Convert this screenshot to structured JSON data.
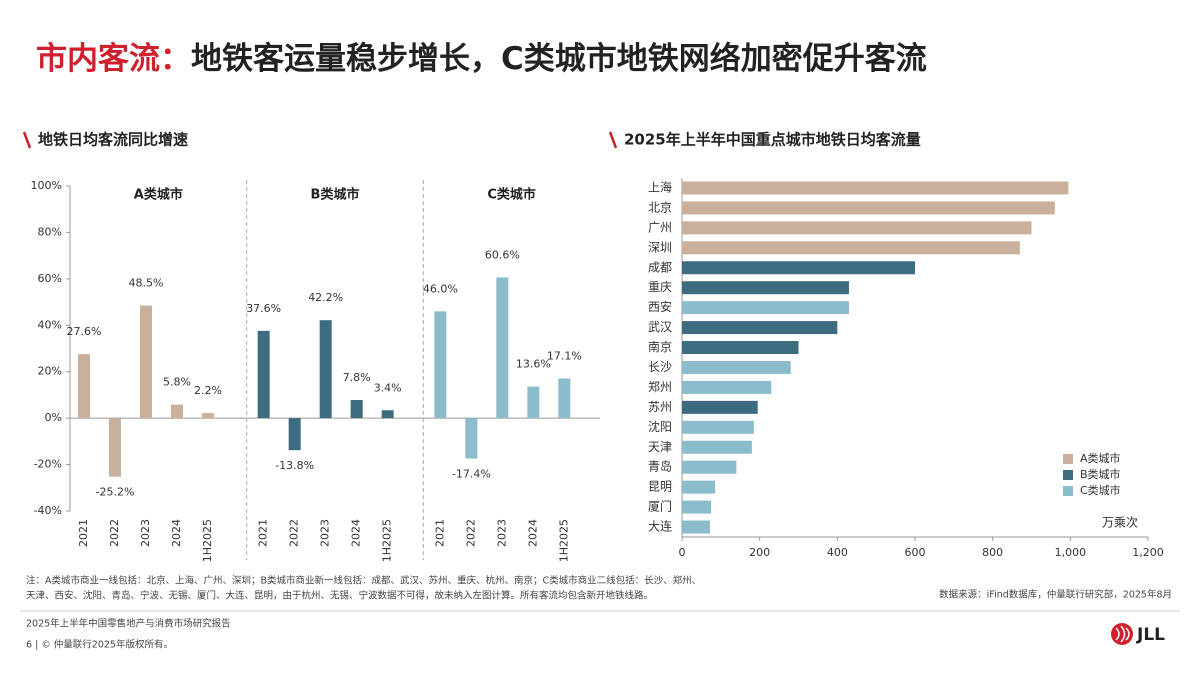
{
  "headline": {
    "lead": "市内客流：",
    "rest": "地铁客运量稳步增长，C类城市地铁网络加密促升客流"
  },
  "chart_data": [
    {
      "type": "panel-bar",
      "title": "地铁日均客流同比增速",
      "categories": [
        "2021",
        "2022",
        "2023",
        "2024",
        "1H2025"
      ],
      "series": [
        {
          "name": "A类城市",
          "color": "#c8b09c",
          "values": [
            27.6,
            -25.2,
            48.5,
            5.8,
            2.2
          ],
          "value_labels": [
            "27.6%",
            "-25.2%",
            "48.5%",
            "5.8%",
            "2.2%"
          ]
        },
        {
          "name": "B类城市",
          "color": "#3d6b80",
          "values": [
            37.6,
            -13.8,
            42.2,
            7.8,
            3.4
          ],
          "value_labels": [
            "37.6%",
            "-13.8%",
            "42.2%",
            "7.8%",
            "3.4%"
          ]
        },
        {
          "name": "C类城市",
          "color": "#8bbccc",
          "values": [
            46.0,
            -17.4,
            60.6,
            13.6,
            17.1
          ],
          "value_labels": [
            "46.0%",
            "-17.4%",
            "60.6%",
            "13.6%",
            "17.1%"
          ]
        }
      ],
      "ylim": [
        -40,
        100
      ],
      "yticks": [
        {
          "value": -40,
          "label": "-40%"
        },
        {
          "value": -20,
          "label": "-20%"
        },
        {
          "value": 0,
          "label": "0%"
        },
        {
          "value": 20,
          "label": "20%"
        },
        {
          "value": 40,
          "label": "40%"
        },
        {
          "value": 60,
          "label": "60%"
        },
        {
          "value": 80,
          "label": "80%"
        },
        {
          "value": 100,
          "label": "100%"
        }
      ]
    },
    {
      "type": "hbar",
      "title": "2025年上半年中国重点城市地铁日均客流量",
      "unit": "万乘次",
      "categories": [
        "上海",
        "北京",
        "广州",
        "深圳",
        "成都",
        "重庆",
        "西安",
        "武汉",
        "南京",
        "长沙",
        "郑州",
        "苏州",
        "沈阳",
        "天津",
        "青岛",
        "昆明",
        "厦门",
        "大连"
      ],
      "values": [
        995,
        960,
        900,
        870,
        600,
        430,
        430,
        400,
        300,
        280,
        230,
        195,
        185,
        180,
        140,
        85,
        75,
        72
      ],
      "colors": [
        "#c8b09c",
        "#c8b09c",
        "#c8b09c",
        "#c8b09c",
        "#3d6b80",
        "#3d6b80",
        "#8bbccc",
        "#3d6b80",
        "#3d6b80",
        "#8bbccc",
        "#8bbccc",
        "#3d6b80",
        "#8bbccc",
        "#8bbccc",
        "#8bbccc",
        "#8bbccc",
        "#8bbccc",
        "#8bbccc"
      ],
      "legend": [
        {
          "name": "A类城市",
          "color": "#c8b09c"
        },
        {
          "name": "B类城市",
          "color": "#3d6b80"
        },
        {
          "name": "C类城市",
          "color": "#8bbccc"
        }
      ],
      "xlim": [
        0,
        1200
      ],
      "xticks": [
        0,
        200,
        400,
        600,
        800,
        {
          "value": 1000,
          "label": "1,000"
        },
        {
          "value": 1200,
          "label": "1,200"
        }
      ]
    }
  ],
  "notes": [
    "注：A类城市商业一线包括：北京、上海、广州、深圳；B类城市商业新一线包括：成都、武汉、苏州、重庆、杭州、南京；C类城市商业二线包括：长沙、郑州、",
    "天津、西安、沈阳、青岛、宁波、无锡、厦门、大连、昆明，由于杭州、无锡、宁波数据不可得，故未纳入左图计算。所有客流均包含新开地铁线路。"
  ],
  "source": "数据来源：iFind数据库，仲量联行研究部，2025年8月",
  "footer": {
    "report": "2025年上半年中国零售地产与消费市场研究报告",
    "copyright": "6 | © 仲量联行2025年版权所有。",
    "logo": "JLL"
  }
}
